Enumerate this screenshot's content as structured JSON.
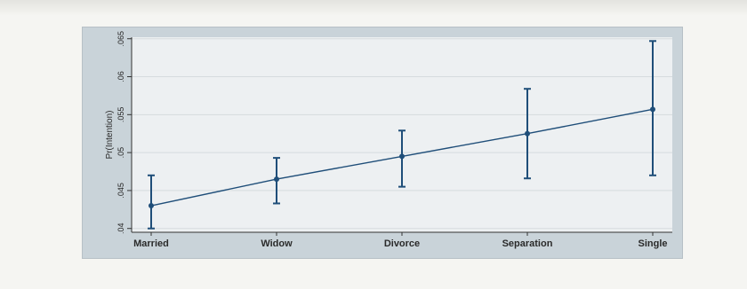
{
  "chart_data": {
    "type": "line",
    "title": "",
    "xlabel": "",
    "ylabel": "Pr(Intention)",
    "categories": [
      "Married",
      "Widow",
      "Divorce",
      "Separation",
      "Single"
    ],
    "series": [
      {
        "values": [
          0.043,
          0.0465,
          0.0495,
          0.0525,
          0.0557
        ],
        "ci_lower": [
          0.04,
          0.0433,
          0.0455,
          0.0466,
          0.047
        ],
        "ci_upper": [
          0.047,
          0.0493,
          0.0529,
          0.0584,
          0.0647
        ]
      }
    ],
    "y_ticks": [
      0.04,
      0.045,
      0.05,
      0.055,
      0.06,
      0.065
    ],
    "y_tick_labels": [
      ".04",
      ".045",
      ".05",
      ".055",
      ".06",
      ".065"
    ],
    "ylim": [
      0.0395,
      0.0652
    ],
    "grid": true,
    "colors": {
      "line": "#1f4e79",
      "background": "#edf0f2",
      "frame": "#c9d3d9",
      "grid": "#d6dbde"
    }
  }
}
